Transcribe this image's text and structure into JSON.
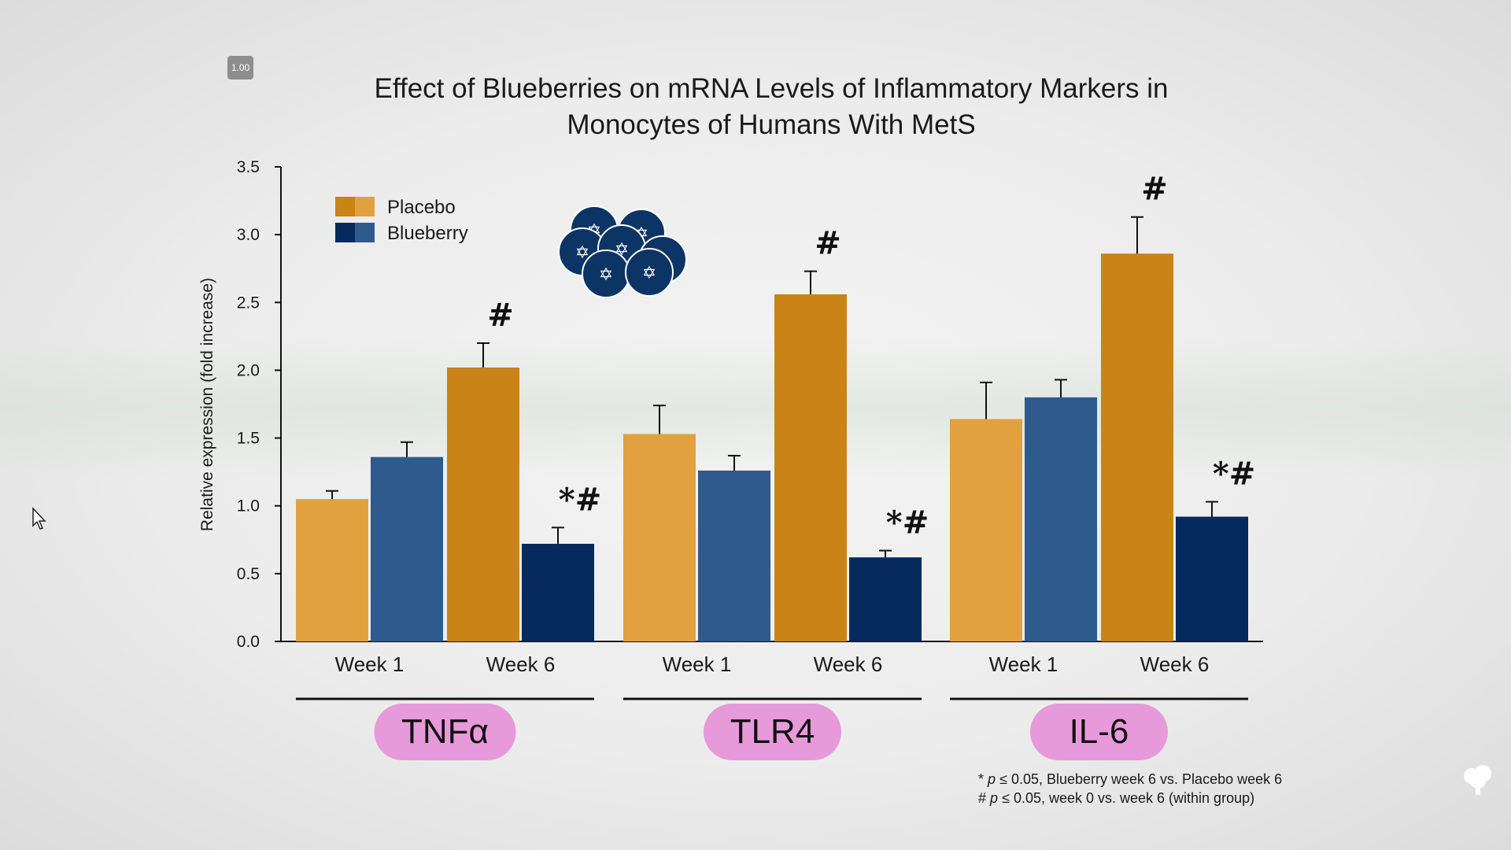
{
  "speed_badge": "1.00",
  "title_line1": "Effect of Blueberries on mRNA Levels of Inflammatory Markers in",
  "title_line2": "Monocytes of Humans With MetS",
  "footnote_line1_symbol": "*",
  "footnote_line1_p": "p",
  "footnote_line1_text": "≤ 0.05, Blueberry week 6 vs. Placebo week 6",
  "footnote_line2_symbol": "#",
  "footnote_line2_p": "p",
  "footnote_line2_text": "≤ 0.05, week 0 vs. week 6 (within group)",
  "icons": [
    "blueberry-cluster-icon",
    "mouse-cursor-icon",
    "tree-logo-icon"
  ],
  "chart_data": {
    "type": "bar",
    "title": "Effect of Blueberries on mRNA Levels of Inflammatory Markers in Monocytes of Humans With MetS",
    "ylabel": "Relative expression (fold increase)",
    "ylim": [
      0,
      3.5
    ],
    "yticks": [
      "0.0",
      "0.5",
      "1.0",
      "1.5",
      "2.0",
      "2.5",
      "3.0",
      "3.5"
    ],
    "legend": {
      "placement": "top-left",
      "entries": [
        "Placebo",
        "Blueberry"
      ]
    },
    "colors": {
      "placebo_week1": "#E2A13F",
      "blueberry_week1": "#2E5A8E",
      "placebo_week6": "#C98316",
      "blueberry_week6": "#062A5E",
      "group_label_bg": "#E79ADA"
    },
    "groups": [
      {
        "marker": "TNFα",
        "bars": [
          {
            "label": "Week 1",
            "series": "Placebo",
            "value": 1.05,
            "error": 0.06,
            "annotation": ""
          },
          {
            "label": "Week 1",
            "series": "Blueberry",
            "value": 1.36,
            "error": 0.11,
            "annotation": ""
          },
          {
            "label": "Week 6",
            "series": "Placebo",
            "value": 2.02,
            "error": 0.18,
            "annotation": "#"
          },
          {
            "label": "Week 6",
            "series": "Blueberry",
            "value": 0.72,
            "error": 0.12,
            "annotation": "*#"
          }
        ]
      },
      {
        "marker": "TLR4",
        "bars": [
          {
            "label": "Week 1",
            "series": "Placebo",
            "value": 1.53,
            "error": 0.21,
            "annotation": ""
          },
          {
            "label": "Week 1",
            "series": "Blueberry",
            "value": 1.26,
            "error": 0.11,
            "annotation": ""
          },
          {
            "label": "Week 6",
            "series": "Placebo",
            "value": 2.56,
            "error": 0.17,
            "annotation": "#"
          },
          {
            "label": "Week 6",
            "series": "Blueberry",
            "value": 0.62,
            "error": 0.05,
            "annotation": "*#"
          }
        ]
      },
      {
        "marker": "IL-6",
        "bars": [
          {
            "label": "Week 1",
            "series": "Placebo",
            "value": 1.64,
            "error": 0.27,
            "annotation": ""
          },
          {
            "label": "Week 1",
            "series": "Blueberry",
            "value": 1.8,
            "error": 0.13,
            "annotation": ""
          },
          {
            "label": "Week 6",
            "series": "Placebo",
            "value": 2.86,
            "error": 0.27,
            "annotation": "#"
          },
          {
            "label": "Week 6",
            "series": "Blueberry",
            "value": 0.92,
            "error": 0.11,
            "annotation": "*#"
          }
        ]
      }
    ]
  }
}
